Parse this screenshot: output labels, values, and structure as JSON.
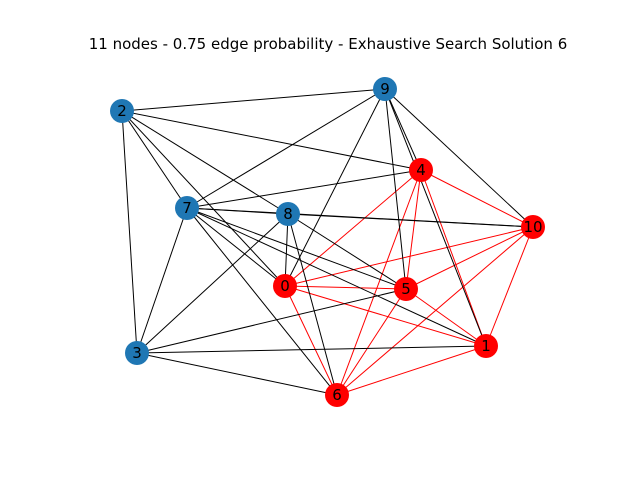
{
  "title": "11 nodes - 0.75 edge probability - Exhaustive Search Solution 6",
  "colors": {
    "selected": "#ff0000",
    "unselected": "#1f77b4",
    "selected_edge": "#ff0000",
    "other_edge": "#000000"
  },
  "nodes": [
    {
      "id": "0",
      "label": "0",
      "selected": true
    },
    {
      "id": "1",
      "label": "1",
      "selected": true
    },
    {
      "id": "2",
      "label": "2",
      "selected": false
    },
    {
      "id": "3",
      "label": "3",
      "selected": false
    },
    {
      "id": "4",
      "label": "4",
      "selected": true
    },
    {
      "id": "5",
      "label": "5",
      "selected": true
    },
    {
      "id": "6",
      "label": "6",
      "selected": true
    },
    {
      "id": "7",
      "label": "7",
      "selected": false
    },
    {
      "id": "8",
      "label": "8",
      "selected": false
    },
    {
      "id": "9",
      "label": "9",
      "selected": false
    },
    {
      "id": "10",
      "label": "10",
      "selected": true
    }
  ],
  "edges": [
    [
      "0",
      "4"
    ],
    [
      "0",
      "5"
    ],
    [
      "0",
      "6"
    ],
    [
      "0",
      "10"
    ],
    [
      "0",
      "1"
    ],
    [
      "4",
      "5"
    ],
    [
      "4",
      "6"
    ],
    [
      "4",
      "10"
    ],
    [
      "4",
      "1"
    ],
    [
      "5",
      "6"
    ],
    [
      "5",
      "10"
    ],
    [
      "5",
      "1"
    ],
    [
      "6",
      "10"
    ],
    [
      "6",
      "1"
    ],
    [
      "10",
      "1"
    ],
    [
      "2",
      "9"
    ],
    [
      "2",
      "4"
    ],
    [
      "2",
      "7"
    ],
    [
      "2",
      "8"
    ],
    [
      "2",
      "0"
    ],
    [
      "2",
      "3"
    ],
    [
      "9",
      "7"
    ],
    [
      "9",
      "0"
    ],
    [
      "9",
      "4"
    ],
    [
      "9",
      "10"
    ],
    [
      "9",
      "5"
    ],
    [
      "9",
      "1"
    ],
    [
      "7",
      "4"
    ],
    [
      "7",
      "8"
    ],
    [
      "7",
      "10"
    ],
    [
      "7",
      "5"
    ],
    [
      "7",
      "0"
    ],
    [
      "7",
      "3"
    ],
    [
      "7",
      "6"
    ],
    [
      "7",
      "1"
    ],
    [
      "8",
      "10"
    ],
    [
      "8",
      "5"
    ],
    [
      "8",
      "0"
    ],
    [
      "8",
      "3"
    ],
    [
      "8",
      "6"
    ],
    [
      "3",
      "5"
    ],
    [
      "3",
      "1"
    ],
    [
      "3",
      "6"
    ]
  ]
}
